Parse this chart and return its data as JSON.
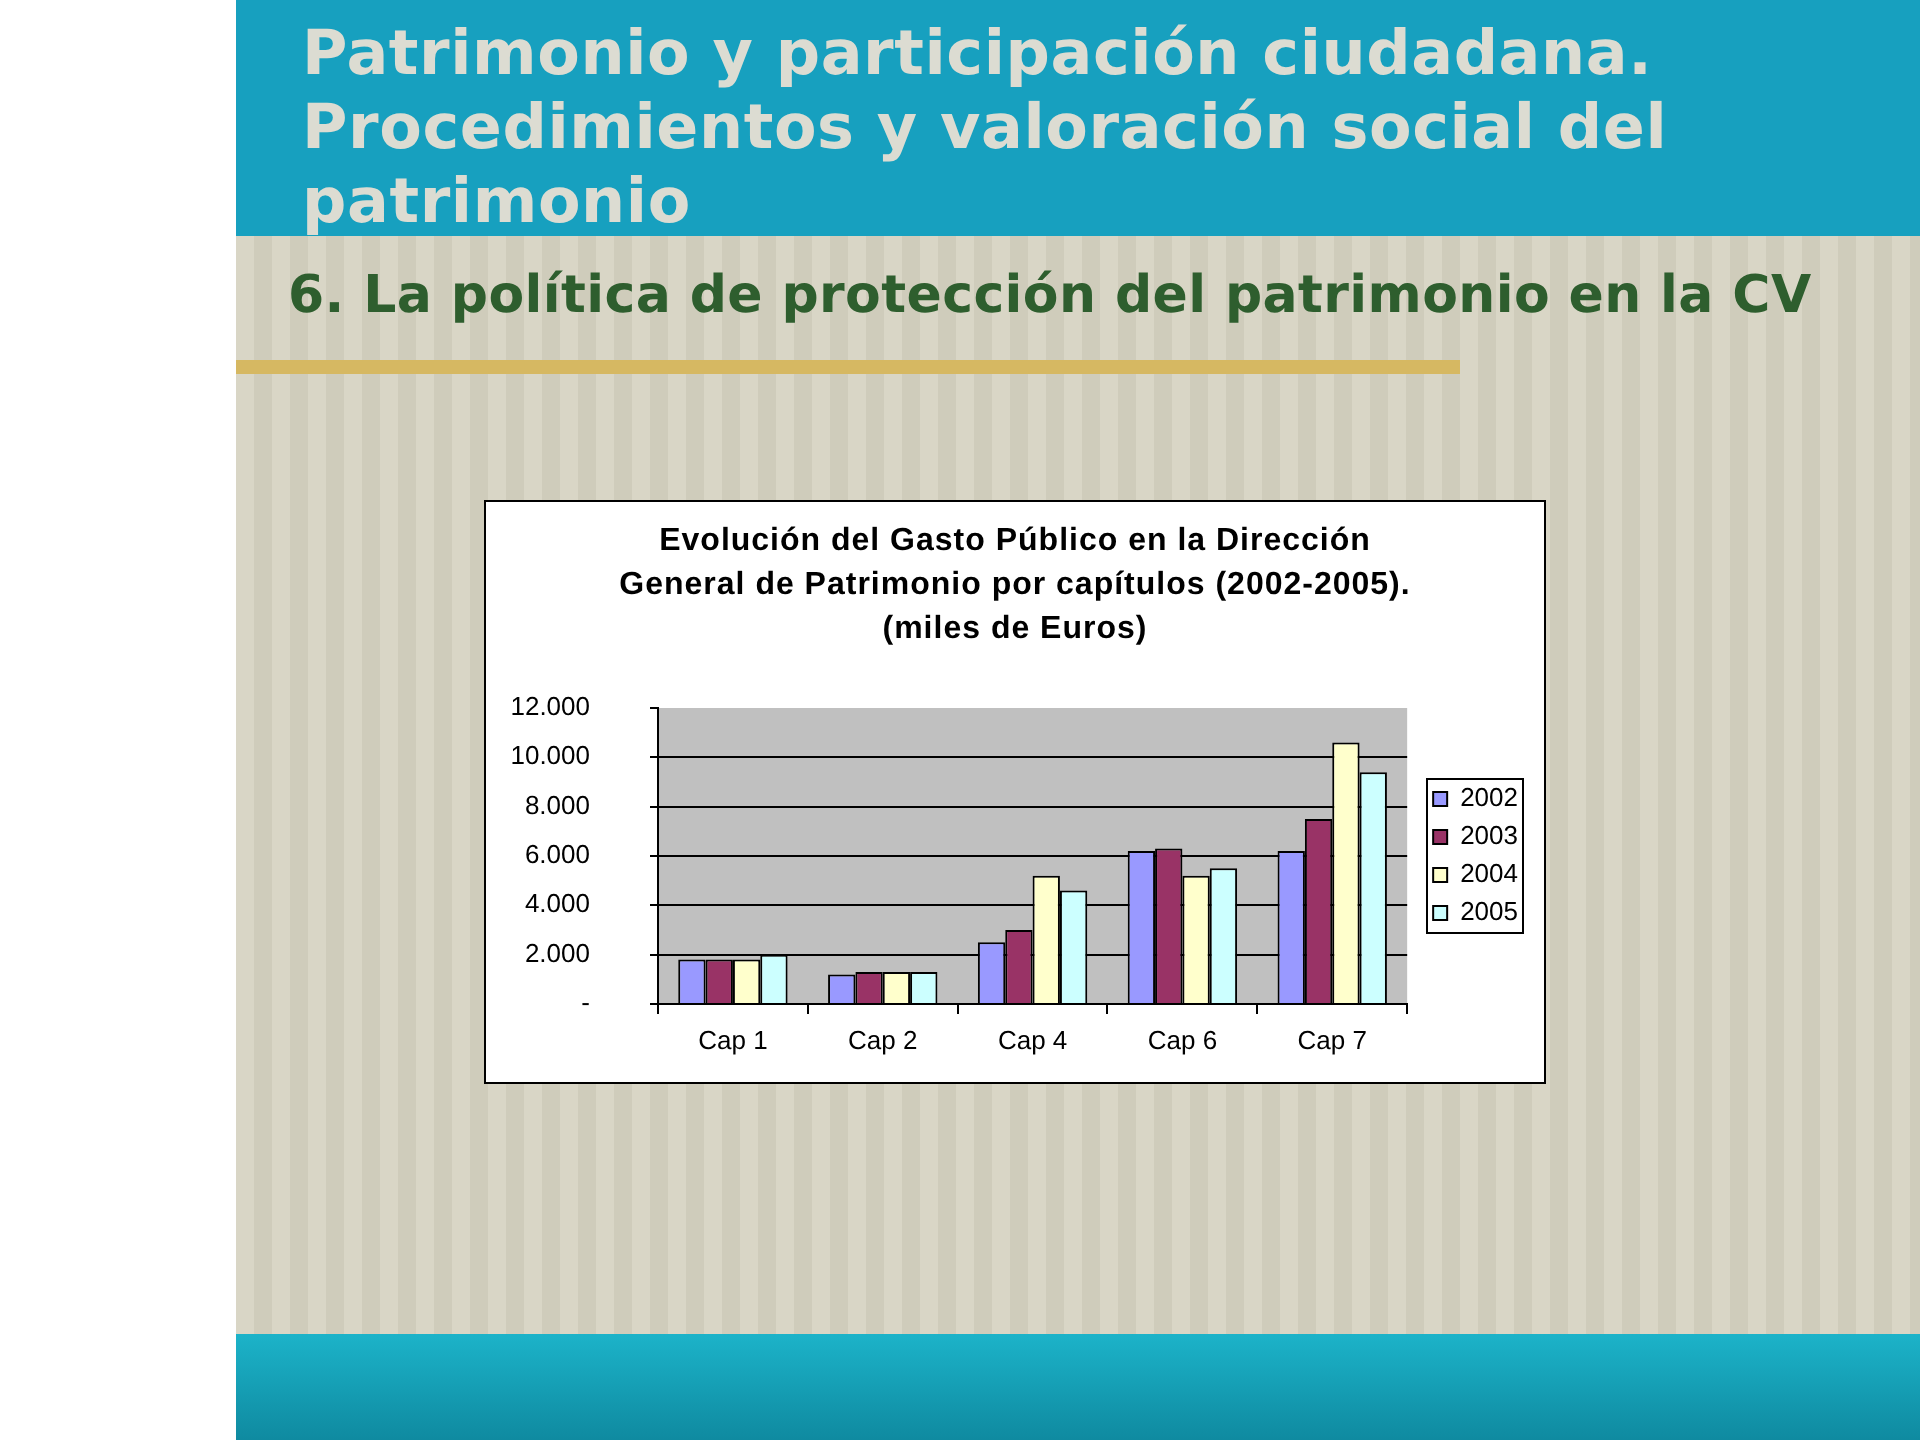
{
  "chart_data": {
    "type": "bar",
    "title": "Evolución del Gasto Público en la Dirección General de Patrimonio por capítulos (2002-2005). (miles de Euros)",
    "annotations": [
      "Patrimonio y participación ciudadana. Procedimientos y valoración social del patrimonio",
      "6. La política de protección del patrimonio en la CV"
    ],
    "categories": [
      "Cap 1",
      "Cap 2",
      "Cap 4",
      "Cap 6",
      "Cap 7"
    ],
    "series": [
      {
        "name": "2002",
        "color": "#9999ff",
        "values": [
          1800,
          1200,
          2500,
          6200,
          6200
        ]
      },
      {
        "name": "2003",
        "color": "#993366",
        "values": [
          1800,
          1300,
          3000,
          6300,
          7500
        ]
      },
      {
        "name": "2004",
        "color": "#ffffcc",
        "values": [
          1800,
          1300,
          5200,
          5200,
          10600
        ]
      },
      {
        "name": "2005",
        "color": "#ccffff",
        "values": [
          2000,
          1300,
          4600,
          5500,
          9400
        ]
      }
    ],
    "ylim": [
      0,
      12000
    ],
    "yticks": [
      {
        "value": 0,
        "label": "-"
      },
      {
        "value": 2000,
        "label": "2.000"
      },
      {
        "value": 4000,
        "label": "4.000"
      },
      {
        "value": 6000,
        "label": "6.000"
      },
      {
        "value": 8000,
        "label": "8.000"
      },
      {
        "value": 10000,
        "label": "10.000"
      },
      {
        "value": 12000,
        "label": "12.000"
      }
    ],
    "grid": "y",
    "legend": "right"
  }
}
